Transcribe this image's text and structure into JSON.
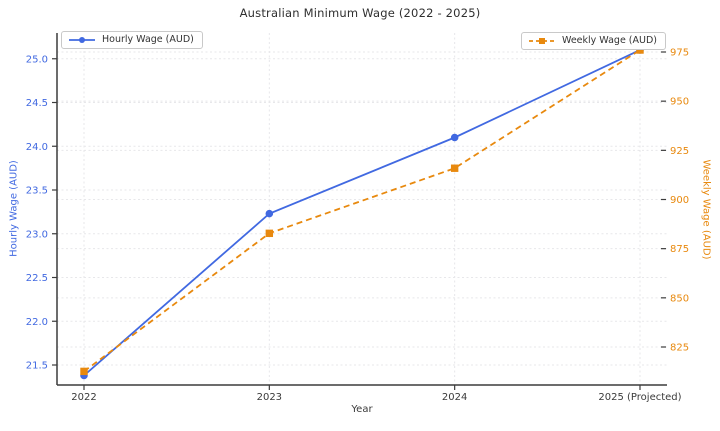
{
  "chart_data": {
    "type": "line",
    "title": "Australian Minimum Wage (2022 - 2025)",
    "xlabel": "Year",
    "categories": [
      "2022",
      "2023",
      "2024",
      "2025 (Projected)"
    ],
    "series": [
      {
        "name": "Hourly Wage (AUD)",
        "axis": "left",
        "values": [
          21.38,
          23.23,
          24.1,
          25.1
        ],
        "color": "#4169e1",
        "line_style": "solid",
        "marker": "circle"
      },
      {
        "name": "Weekly Wage (AUD)",
        "axis": "right",
        "values": [
          812.6,
          882.8,
          915.9,
          976.0
        ],
        "color": "#e8890e",
        "line_style": "dashed",
        "marker": "square"
      }
    ],
    "axes": {
      "left": {
        "label": "Hourly Wage (AUD)",
        "tick_labels": [
          "21.5",
          "22.0",
          "22.5",
          "23.0",
          "23.5",
          "24.0",
          "24.5",
          "25.0"
        ],
        "range": [
          21.27,
          25.3
        ],
        "color": "#4169e1"
      },
      "right": {
        "label": "Weekly Wage (AUD)",
        "tick_labels": [
          "825",
          "850",
          "875",
          "900",
          "925",
          "950",
          "975"
        ],
        "range": [
          803,
          985
        ],
        "color": "#e8890e"
      },
      "x": {
        "label": "Year",
        "tick_labels": [
          "2022",
          "2023",
          "2024",
          "2025 (Projected)"
        ],
        "color": "#3a3a3a"
      }
    },
    "grid": true,
    "legend_positions": [
      "upper left",
      "upper right"
    ],
    "spine_color": "#3c3c3c",
    "grid_color": "#e7e7ea"
  }
}
